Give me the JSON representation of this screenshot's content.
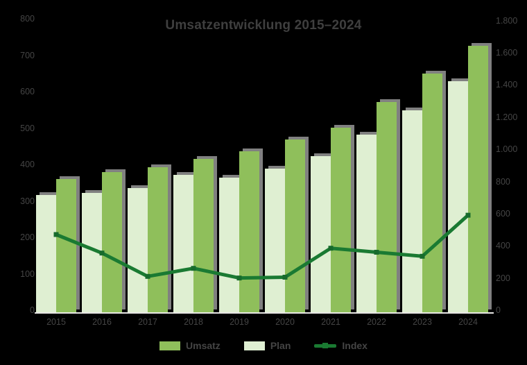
{
  "title": "Umsatzentwicklung 2015–2024",
  "legend": [
    {
      "label": "Umsatz",
      "swatch": "bar",
      "color": "#8FBF5B"
    },
    {
      "label": "Plan",
      "swatch": "bar",
      "color": "#DFEFD2"
    },
    {
      "label": "Index",
      "swatch": "line",
      "color": "#1A7A32"
    }
  ],
  "colors": {
    "background": "#000000",
    "bar_medium_green": "#8FBF5B",
    "bar_light_green": "#DFEFD2",
    "line_dark_green": "#1A7A32",
    "shadow_gray": "#969696",
    "axis_line": "#E8E7E5",
    "text_gray": "#454545"
  },
  "chart_data": {
    "type": "bar",
    "subtype": "combo-clustered-bars-with-line",
    "title": "Umsatzentwicklung 2015–2024",
    "categories": [
      "2015",
      "2016",
      "2017",
      "2018",
      "2019",
      "2020",
      "2021",
      "2022",
      "2023",
      "2024"
    ],
    "series": [
      {
        "name": "Umsatz",
        "chart": "bar",
        "axis": "left",
        "slot": 1,
        "color": "#8FBF5B",
        "values": [
          363,
          382,
          395,
          418,
          439,
          470,
          504,
          574,
          652,
          727
        ]
      },
      {
        "name": "Plan",
        "chart": "bar",
        "axis": "left",
        "slot": 0,
        "color": "#DFEFD2",
        "values": [
          319,
          325,
          338,
          374,
          367,
          391,
          426,
          485,
          550,
          630
        ]
      },
      {
        "name": "Index",
        "chart": "line",
        "axis": "right",
        "color": "#1A7A32",
        "values": [
          475,
          360,
          215,
          265,
          205,
          210,
          390,
          365,
          340,
          595
        ]
      }
    ],
    "left_axis": {
      "min": 0,
      "max": 800,
      "step": 100,
      "ticks": [
        "800",
        "700",
        "600",
        "500",
        "400",
        "300",
        "200",
        "100",
        "0"
      ]
    },
    "right_axis": {
      "min": 0,
      "max": 1800,
      "step": 200,
      "ticks": [
        "1.800",
        "1.600",
        "1.400",
        "1.200",
        "1.000",
        "800",
        "600",
        "400",
        "200",
        "0"
      ]
    },
    "grid": false,
    "legend_position": "bottom"
  }
}
